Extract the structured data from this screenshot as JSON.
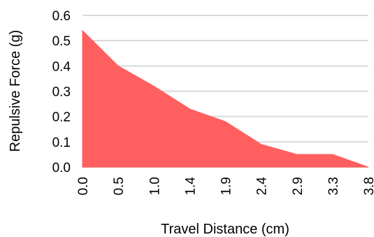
{
  "chart_data": {
    "type": "area",
    "title": "",
    "xlabel": "Travel Distance (cm)",
    "ylabel": "Repulsive Force (g)",
    "x_tick_labels": [
      "0.0",
      "0.5",
      "1.0",
      "1.4",
      "1.9",
      "2.4",
      "2.9",
      "3.3",
      "3.8"
    ],
    "x": [
      0.0,
      0.5,
      1.0,
      1.4,
      1.9,
      2.4,
      2.9,
      3.3,
      3.8
    ],
    "y_tick_labels": [
      "0.0",
      "0.1",
      "0.2",
      "0.3",
      "0.4",
      "0.5",
      "0.6"
    ],
    "ylim": [
      0,
      0.6
    ],
    "grid": true,
    "series": [
      {
        "values": [
          0.54,
          0.4,
          0.32,
          0.23,
          0.18,
          0.09,
          0.05,
          0.05,
          0.0
        ],
        "color": "#ff5f5f"
      }
    ]
  }
}
